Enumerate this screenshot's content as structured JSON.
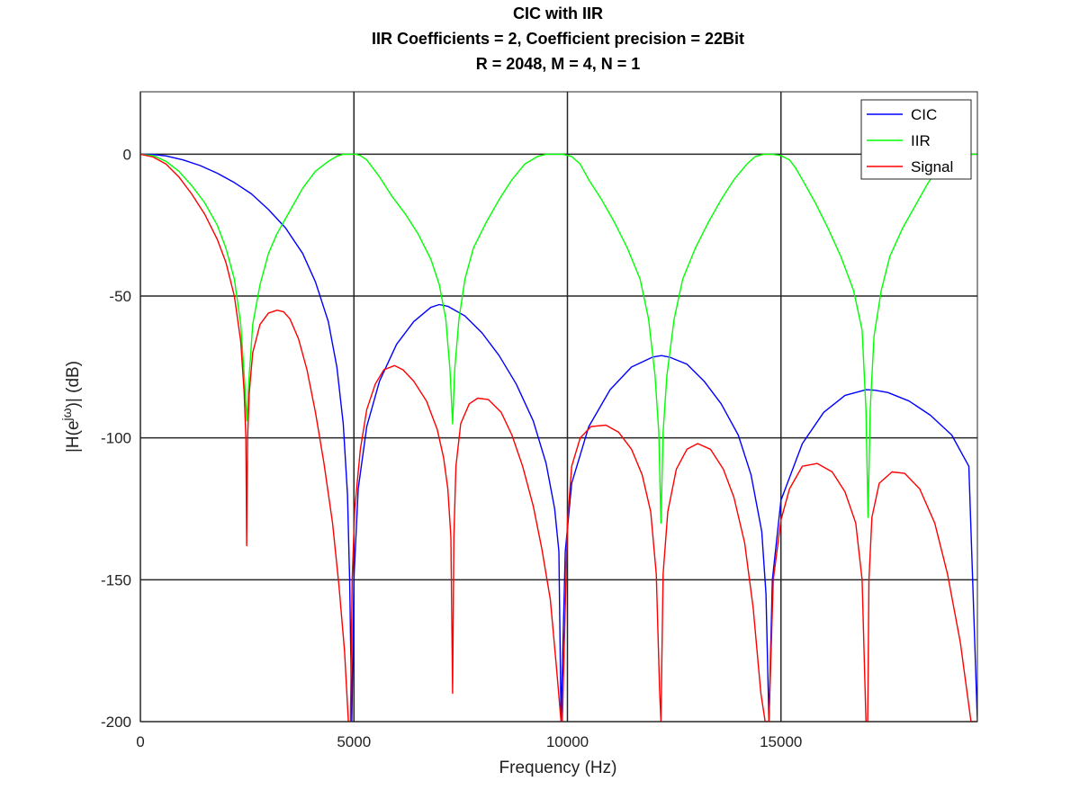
{
  "chart_data": {
    "type": "line",
    "title": [
      "CIC with IIR",
      "IIR Coefficients = 2, Coefficient precision = 22Bit",
      "R = 2048, M = 4, N = 1"
    ],
    "xlabel": "Frequency (Hz)",
    "ylabel_prefix": "|H(e",
    "ylabel_sup": "jω",
    "ylabel_suffix": ")| (dB)",
    "xlim": [
      0,
      19600
    ],
    "ylim": [
      -200,
      22
    ],
    "xticks": [
      0,
      5000,
      10000,
      15000
    ],
    "xtick_labels": [
      "0",
      "5000",
      "10000",
      "15000"
    ],
    "yticks": [
      0,
      -50,
      -100,
      -150,
      -200
    ],
    "ytick_labels": [
      "0",
      "-50",
      "-100",
      "-150",
      "-200"
    ],
    "grid": true,
    "legend_position": "top-right",
    "series": [
      {
        "name": "CIC",
        "color": "#0000ff",
        "x": [
          0,
          300,
          600,
          1000,
          1400,
          1800,
          2200,
          2600,
          3000,
          3400,
          3800,
          4100,
          4400,
          4600,
          4750,
          4850,
          4900,
          4950,
          5000,
          5100,
          5300,
          5600,
          6000,
          6400,
          6800,
          7000,
          7200,
          7600,
          8000,
          8400,
          8800,
          9200,
          9500,
          9700,
          9800,
          9850,
          9950,
          10100,
          10500,
          11000,
          11500,
          12000,
          12200,
          12400,
          12800,
          13200,
          13600,
          14000,
          14300,
          14550,
          14650,
          14720,
          14800,
          15000,
          15500,
          16000,
          16500,
          17000,
          17200,
          17500,
          18000,
          18500,
          19000,
          19400,
          19600
        ],
        "y": [
          0,
          -0.1,
          -0.6,
          -2,
          -4,
          -6.7,
          -10,
          -14,
          -19.5,
          -26,
          -35,
          -45,
          -59,
          -75,
          -95,
          -120,
          -150,
          -200,
          -150,
          -118,
          -96,
          -80,
          -67,
          -59,
          -54,
          -53,
          -53.6,
          -57,
          -63,
          -71,
          -81,
          -94,
          -109,
          -125,
          -140,
          -200,
          -140,
          -116,
          -96,
          -83,
          -75,
          -71.5,
          -71,
          -71.6,
          -74,
          -80,
          -88,
          -99,
          -113,
          -133,
          -155,
          -200,
          -150,
          -122,
          -102,
          -91,
          -85,
          -83,
          -83.2,
          -84,
          -87,
          -92,
          -99,
          -110,
          -200
        ]
      },
      {
        "name": "IIR",
        "color": "#00ff00",
        "x": [
          0,
          300,
          600,
          900,
          1200,
          1500,
          1800,
          2000,
          2200,
          2350,
          2440,
          2490,
          2540,
          2630,
          2800,
          3000,
          3200,
          3500,
          3800,
          4100,
          4400,
          4600,
          4750,
          4850,
          4950,
          5050,
          5150,
          5300,
          5600,
          5900,
          6200,
          6500,
          6800,
          7000,
          7150,
          7250,
          7310,
          7360,
          7460,
          7600,
          7800,
          8100,
          8400,
          8700,
          9000,
          9300,
          9500,
          9700,
          9900,
          10100,
          10300,
          10500,
          10800,
          11100,
          11400,
          11700,
          11900,
          12050,
          12140,
          12190,
          12240,
          12330,
          12500,
          12700,
          13000,
          13300,
          13600,
          13900,
          14200,
          14400,
          14600,
          14800,
          15000,
          15200,
          15350,
          15500,
          15800,
          16100,
          16400,
          16700,
          16900,
          16990,
          17040,
          17090,
          17180,
          17350,
          17550,
          17850,
          18150,
          18450,
          18750,
          19050,
          19300,
          19600
        ],
        "y": [
          0,
          -0.5,
          -2.5,
          -6,
          -11,
          -17,
          -25,
          -33,
          -44,
          -60,
          -80,
          -94,
          -80,
          -60,
          -46,
          -35,
          -28,
          -20,
          -12,
          -6,
          -2.5,
          -0.7,
          0,
          0,
          0,
          0,
          -0.5,
          -2,
          -8,
          -15,
          -21,
          -28,
          -37,
          -46,
          -58,
          -76,
          -95,
          -76,
          -58,
          -44,
          -33,
          -24,
          -16,
          -9,
          -3.5,
          -0.8,
          0,
          0,
          0,
          -0.8,
          -3.5,
          -9,
          -16,
          -24,
          -33,
          -44,
          -58,
          -78,
          -98,
          -130,
          -98,
          -78,
          -58,
          -44,
          -33,
          -24,
          -16,
          -9,
          -3.5,
          -0.8,
          0,
          0,
          -0.5,
          -2,
          -5,
          -9,
          -17,
          -26,
          -36,
          -48,
          -62,
          -90,
          -128,
          -90,
          -64,
          -48,
          -36,
          -26,
          -18,
          -10,
          -4,
          -1,
          0,
          0
        ]
      },
      {
        "name": "Signal",
        "color": "#ff0000",
        "x": [
          0,
          300,
          600,
          900,
          1200,
          1500,
          1800,
          2000,
          2200,
          2350,
          2430,
          2470,
          2490,
          2510,
          2550,
          2630,
          2800,
          3000,
          3200,
          3350,
          3500,
          3700,
          3900,
          4100,
          4300,
          4500,
          4650,
          4780,
          4870,
          4920,
          4960,
          5020,
          5150,
          5300,
          5500,
          5700,
          5950,
          6150,
          6400,
          6700,
          6950,
          7100,
          7200,
          7270,
          7310,
          7340,
          7390,
          7500,
          7700,
          7900,
          8150,
          8450,
          8700,
          8950,
          9200,
          9400,
          9600,
          9750,
          9850,
          9880,
          10000,
          10100,
          10300,
          10550,
          10900,
          11200,
          11500,
          11750,
          11950,
          12080,
          12160,
          12190,
          12240,
          12350,
          12550,
          12800,
          13050,
          13350,
          13650,
          13900,
          14150,
          14350,
          14530,
          14630,
          14720,
          14820,
          15000,
          15200,
          15500,
          15850,
          16200,
          16500,
          16750,
          16900,
          16990,
          17030,
          17060,
          17130,
          17300,
          17600,
          17900,
          18250,
          18600,
          18900,
          19200,
          19450,
          19600
        ],
        "y": [
          0,
          -1,
          -3.5,
          -8,
          -14,
          -21,
          -30,
          -38,
          -50,
          -66,
          -84,
          -100,
          -138,
          -100,
          -84,
          -70,
          -60,
          -56,
          -55,
          -55.5,
          -58,
          -65,
          -76,
          -91,
          -109,
          -130,
          -152,
          -175,
          -200,
          -200,
          -150,
          -125,
          -104,
          -90,
          -81,
          -76,
          -74.5,
          -76,
          -80,
          -87,
          -97,
          -107,
          -118,
          -135,
          -190,
          -135,
          -110,
          -95,
          -88,
          -86,
          -86.5,
          -91,
          -99,
          -110,
          -124,
          -139,
          -157,
          -182,
          -200,
          -200,
          -130,
          -110,
          -100,
          -96,
          -95.5,
          -98,
          -104,
          -113,
          -126,
          -148,
          -190,
          -200,
          -148,
          -126,
          -111,
          -104,
          -102,
          -104,
          -111,
          -121,
          -137,
          -160,
          -190,
          -200,
          -200,
          -150,
          -129,
          -118,
          -110,
          -109,
          -112,
          -119,
          -130,
          -150,
          -200,
          -200,
          -150,
          -128,
          -116,
          -112,
          -112.5,
          -118,
          -130,
          -148,
          -172,
          -200,
          -200
        ]
      }
    ]
  }
}
